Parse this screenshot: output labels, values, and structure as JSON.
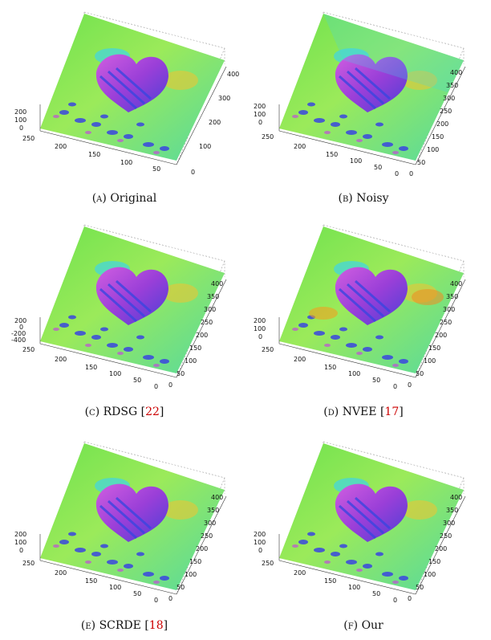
{
  "figures": [
    {
      "id": "a",
      "letter": "(a)",
      "name": "Original",
      "ref": "",
      "ztop": "200",
      "zmid": "100",
      "zlow": "0",
      "zbottom": "",
      "right_ticks": [
        "400",
        "300",
        "200",
        "100",
        "0"
      ],
      "left_ticks": [
        "250",
        "200",
        "150",
        "100",
        "50"
      ]
    },
    {
      "id": "b",
      "letter": "(b)",
      "name": "Noisy",
      "ref": "",
      "ztop": "200",
      "zmid": "100",
      "zlow": "0",
      "zbottom": "",
      "right_ticks": [
        "400",
        "350",
        "300",
        "250",
        "200",
        "150",
        "100",
        "50",
        "0"
      ],
      "left_ticks": [
        "250",
        "200",
        "150",
        "100",
        "50",
        "0"
      ]
    },
    {
      "id": "c",
      "letter": "(c)",
      "name": "RDSG",
      "ref": "22",
      "ztop": "200",
      "zmid": "0",
      "zlow": "-200",
      "zbottom": "-400",
      "right_ticks": [
        "400",
        "350",
        "300",
        "250",
        "200",
        "150",
        "100",
        "50",
        "0"
      ],
      "left_ticks": [
        "250",
        "200",
        "150",
        "100",
        "50",
        "0"
      ]
    },
    {
      "id": "d",
      "letter": "(d)",
      "name": "NVEE",
      "ref": "17",
      "ztop": "200",
      "zmid": "100",
      "zlow": "0",
      "zbottom": "",
      "right_ticks": [
        "400",
        "350",
        "300",
        "250",
        "200",
        "150",
        "100",
        "50",
        "0"
      ],
      "left_ticks": [
        "250",
        "200",
        "150",
        "100",
        "50",
        "0"
      ]
    },
    {
      "id": "e",
      "letter": "(e)",
      "name": "SCRDE",
      "ref": "18",
      "ztop": "200",
      "zmid": "100",
      "zlow": "0",
      "zbottom": "",
      "right_ticks": [
        "400",
        "350",
        "300",
        "250",
        "200",
        "150",
        "100",
        "50",
        "0"
      ],
      "left_ticks": [
        "250",
        "200",
        "150",
        "100",
        "50",
        "0"
      ]
    },
    {
      "id": "f",
      "letter": "(f)",
      "name": "Our",
      "ref": "",
      "ztop": "200",
      "zmid": "100",
      "zlow": "0",
      "zbottom": "",
      "right_ticks": [
        "400",
        "350",
        "300",
        "250",
        "200",
        "150",
        "100",
        "50",
        "0"
      ],
      "left_ticks": [
        "250",
        "200",
        "150",
        "100",
        "50",
        "0"
      ]
    }
  ],
  "colors": {
    "field": "#7fe35a",
    "heart": "#c24ed9",
    "heart_dark": "#4a3fd6",
    "ridge": "#3a46e0",
    "warm": "#f2c230",
    "cyan": "#3fd6e6"
  }
}
